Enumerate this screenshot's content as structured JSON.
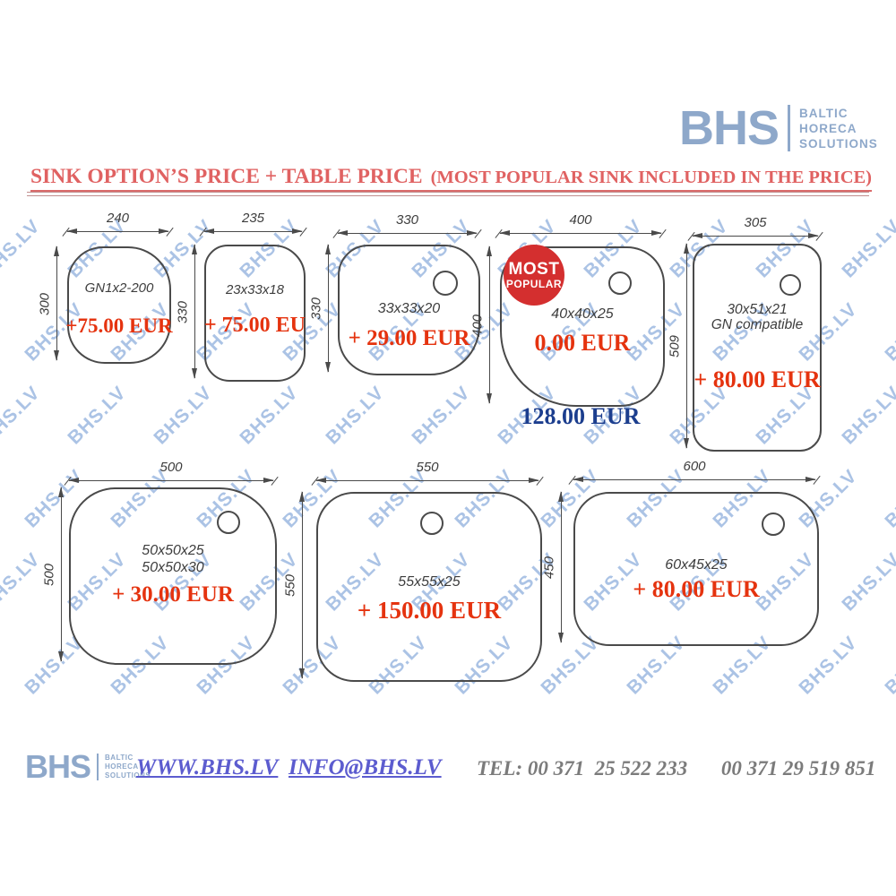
{
  "header": {
    "logo": {
      "brand": "BHS",
      "tagline": [
        "BALTIC",
        "HORECA",
        "SOLUTIONS"
      ],
      "color": "#8ea8ca"
    },
    "title": "SINK OPTION’S PRICE + TABLE PRICE",
    "subtitle": "(MOST POPULAR SINK INCLUDED IN THE PRICE)",
    "title_color": "#e06262"
  },
  "watermark": {
    "text": "BHS.LV",
    "color": "#abc3e5"
  },
  "sinks": [
    {
      "width_label": "240",
      "height_label": "300",
      "name": "GN1x2-200",
      "price": "+75.00 EUR"
    },
    {
      "width_label": "235",
      "height_label": "330",
      "name": "23x33x18",
      "price": "+ 75.00 EU"
    },
    {
      "width_label": "330",
      "height_label": "330",
      "name": "33x33x20",
      "price": "+ 29.00 EUR"
    },
    {
      "width_label": "400",
      "height_label": "400",
      "name": "40x40x25",
      "price": "0.00 EUR",
      "badge": {
        "line1": "MOST",
        "line2": "POPULAR"
      },
      "total": "128.00 EUR"
    },
    {
      "width_label": "305",
      "height_label": "509",
      "name": "30x51x21",
      "name2": "GN compatible",
      "price": "+ 80.00 EUR"
    },
    {
      "width_label": "500",
      "height_label": "500",
      "name": "50x50x25",
      "name2": "50x50x30",
      "price": "+ 30.00 EUR"
    },
    {
      "width_label": "550",
      "height_label": "550",
      "name": "55x55x25",
      "price": "+ 150.00 EUR"
    },
    {
      "width_label": "600",
      "height_label": "450",
      "name": "60x45x25",
      "price": "+ 80.00 EUR"
    }
  ],
  "colors": {
    "price_red": "#e5330f",
    "total_blue": "#1c3e8e",
    "badge_red": "#d42f2f",
    "drawing_gray": "#4a4a4a",
    "logo_blue": "#8ea8ca",
    "watermark_blue": "#abc3e5",
    "link_violet": "#5c5ccf",
    "tel_gray": "#7b7b7b",
    "rule_pink": "#c08e8e"
  },
  "footer": {
    "logo": {
      "brand": "BHS",
      "tagline": [
        "BALTIC",
        "HORECA",
        "SOLUTIONS"
      ]
    },
    "website": "WWW.BHS.LV",
    "email": "INFO@BHS.LV",
    "tel": "TEL: 00 371  25 522 233",
    "tel2": "00 371 29 519 851"
  }
}
